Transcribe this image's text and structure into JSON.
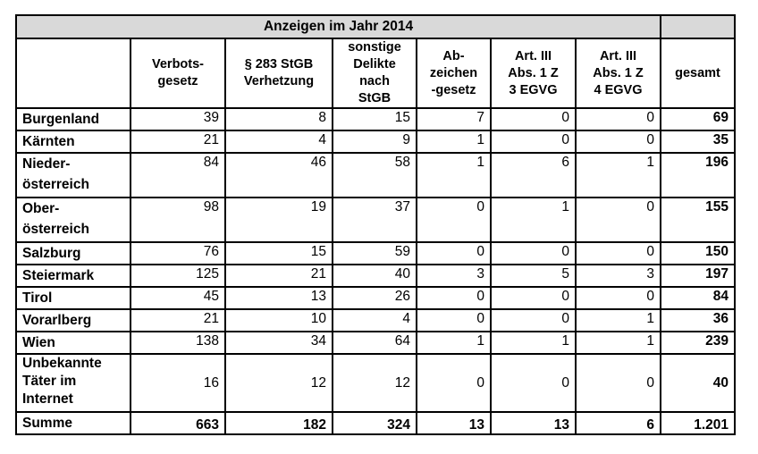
{
  "title": "Anzeigen im Jahr 2014",
  "headers": [
    "",
    "Verbots-\ngesetz",
    "§ 283 StGB\nVerhetzung",
    "sonstige\nDelikte\nnach\nStGB",
    "Ab-\nzeichen\n-gesetz",
    "Art. III\nAbs. 1 Z\n3 EGVG",
    "Art. III\nAbs. 1 Z\n4 EGVG",
    "gesamt"
  ],
  "rows": [
    {
      "name": "Burgenland",
      "values": [
        "39",
        "8",
        "15",
        "7",
        "0",
        "0",
        "69"
      ],
      "size": "r1"
    },
    {
      "name": "Kärnten",
      "values": [
        "21",
        "4",
        "9",
        "1",
        "0",
        "0",
        "35"
      ],
      "size": "r1"
    },
    {
      "name": "Nieder-\nösterreich",
      "values": [
        "84",
        "46",
        "58",
        "1",
        "6",
        "1",
        "196"
      ],
      "size": "r2"
    },
    {
      "name": "Ober-\nösterreich",
      "values": [
        "98",
        "19",
        "37",
        "0",
        "1",
        "0",
        "155"
      ],
      "size": "r2"
    },
    {
      "name": "Salzburg",
      "values": [
        "76",
        "15",
        "59",
        "0",
        "0",
        "0",
        "150"
      ],
      "size": "r1"
    },
    {
      "name": "Steiermark",
      "values": [
        "125",
        "21",
        "40",
        "3",
        "5",
        "3",
        "197"
      ],
      "size": "r1"
    },
    {
      "name": "Tirol",
      "values": [
        "45",
        "13",
        "26",
        "0",
        "0",
        "0",
        "84"
      ],
      "size": "r1"
    },
    {
      "name": "Vorarlberg",
      "values": [
        "21",
        "10",
        "4",
        "0",
        "0",
        "1",
        "36"
      ],
      "size": "r1"
    },
    {
      "name": "Wien",
      "values": [
        "138",
        "34",
        "64",
        "1",
        "1",
        "1",
        "239"
      ],
      "size": "r1"
    },
    {
      "name": "Unbekannte\nTäter im\nInternet",
      "values": [
        "16",
        "12",
        "12",
        "0",
        "0",
        "0",
        "40"
      ],
      "size": "r3"
    }
  ],
  "sum": {
    "name": "Summe",
    "values": [
      "663",
      "182",
      "324",
      "13",
      "13",
      "6",
      "1.201"
    ]
  }
}
